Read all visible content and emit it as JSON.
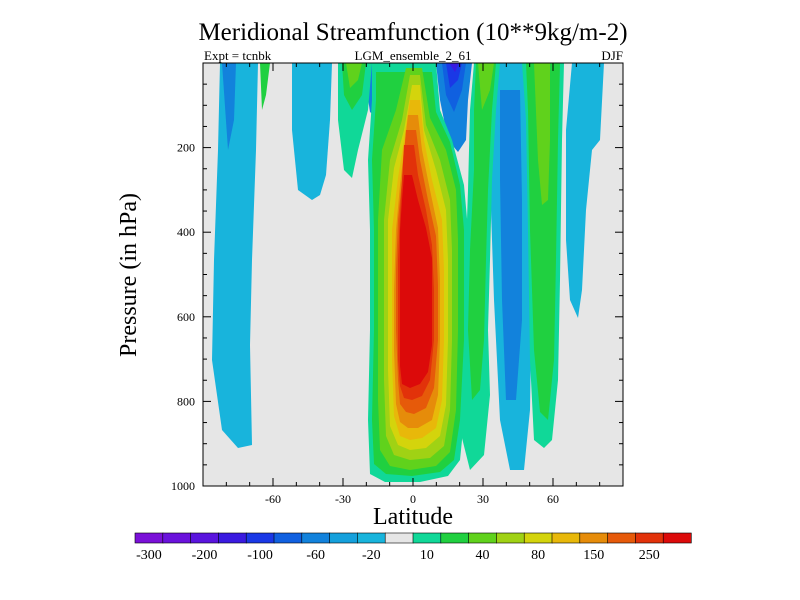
{
  "chart_data": {
    "type": "contour",
    "title": "Meridional Streamfunction (10**9kg/m-2)",
    "left_label": "Expt = tcnbk",
    "center_label": "LGM_ensemble_2_61",
    "right_label": "DJF",
    "xlabel": "Latitude",
    "ylabel": "Pressure (in hPa)",
    "xlim": [
      -90,
      90
    ],
    "ylim": [
      1000,
      0
    ],
    "xticks": [
      -60,
      -30,
      0,
      30,
      60
    ],
    "yticks": [
      200,
      400,
      600,
      800,
      1000
    ],
    "background_color": "#e6e6e6",
    "levels": [
      {
        "label": "-300",
        "color": "#7a10d8"
      },
      {
        "label": "",
        "color": "#6a12dc"
      },
      {
        "label": "-200",
        "color": "#5a14de"
      },
      {
        "label": "",
        "color": "#3a1ae0"
      },
      {
        "label": "-100",
        "color": "#1a38e6"
      },
      {
        "label": "",
        "color": "#1060e0"
      },
      {
        "label": "-60",
        "color": "#1282dc"
      },
      {
        "label": "",
        "color": "#14a0dc"
      },
      {
        "label": "-20",
        "color": "#18b4dc"
      },
      {
        "label": "",
        "color": "#e6e6e6"
      },
      {
        "label": "10",
        "color": "#10d898"
      },
      {
        "label": "",
        "color": "#20d040"
      },
      {
        "label": "40",
        "color": "#60d21c"
      },
      {
        "label": "",
        "color": "#a0d214"
      },
      {
        "label": "80",
        "color": "#d4d40c"
      },
      {
        "label": "",
        "color": "#e8b80a"
      },
      {
        "label": "150",
        "color": "#e68c0a"
      },
      {
        "label": "",
        "color": "#e65a0a"
      },
      {
        "label": "250",
        "color": "#e2320a"
      },
      {
        "label": "",
        "color": "#dc0a0a"
      }
    ]
  }
}
